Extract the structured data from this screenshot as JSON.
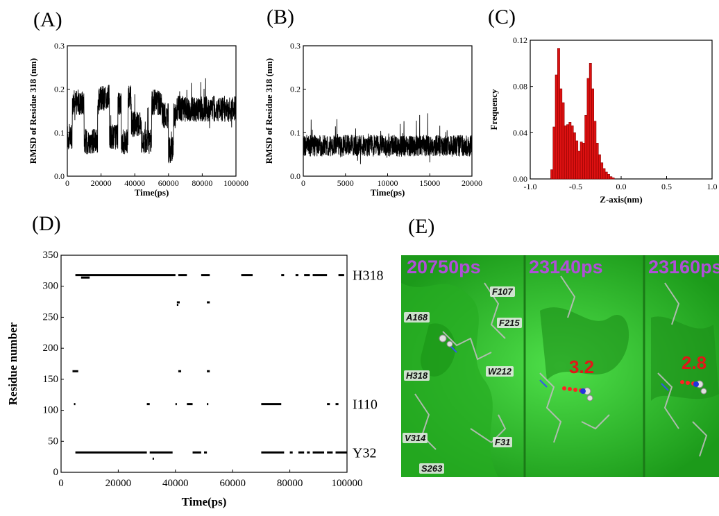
{
  "panels": {
    "A": "(A)",
    "B": "(B)",
    "C": "(C)",
    "D": "(D)",
    "E": "(E)"
  },
  "chart_data": [
    {
      "id": "A",
      "type": "line",
      "xlabel": "Time(ps)",
      "ylabel": "RMSD of Residue 318 (nm)",
      "xlim": [
        0,
        100000
      ],
      "ylim": [
        0.0,
        0.3
      ],
      "xticks": [
        "0",
        "20000",
        "40000",
        "60000",
        "80000",
        "100000"
      ],
      "yticks": [
        "0.0",
        "0.1",
        "0.2",
        "0.3"
      ],
      "segments": [
        [
          0,
          3000,
          0.09
        ],
        [
          3000,
          10000,
          0.17
        ],
        [
          10000,
          18000,
          0.08
        ],
        [
          18000,
          25000,
          0.18
        ],
        [
          25000,
          30000,
          0.09
        ],
        [
          30000,
          32000,
          0.17
        ],
        [
          32000,
          36000,
          0.08
        ],
        [
          36000,
          38000,
          0.18
        ],
        [
          38000,
          44000,
          0.12
        ],
        [
          44000,
          50000,
          0.08
        ],
        [
          50000,
          56000,
          0.17
        ],
        [
          56000,
          60000,
          0.14
        ],
        [
          60000,
          63000,
          0.06
        ],
        [
          63000,
          65000,
          0.14
        ],
        [
          65000,
          100000,
          0.155
        ]
      ],
      "noise": 0.03,
      "color": "#000000"
    },
    {
      "id": "B",
      "type": "line",
      "xlabel": "Time(ps)",
      "ylabel": "RMSD of Residue 318 (nm)",
      "xlim": [
        0,
        20000
      ],
      "ylim": [
        0.0,
        0.3
      ],
      "xticks": [
        "0",
        "5000",
        "10000",
        "15000",
        "20000"
      ],
      "yticks": [
        "0.0",
        "0.1",
        "0.2",
        "0.3"
      ],
      "segments": [
        [
          0,
          20000,
          0.07
        ]
      ],
      "noise": 0.025,
      "color": "#000000"
    },
    {
      "id": "C",
      "type": "bar",
      "xlabel": "Z-axis(nm)",
      "ylabel": "Frequency",
      "xlim": [
        -1.0,
        1.0
      ],
      "ylim": [
        0.0,
        0.12
      ],
      "xticks": [
        "-1.0",
        "-0.5",
        "0.0",
        "0.5",
        "1.0"
      ],
      "yticks": [
        "0.00",
        "0.04",
        "0.08",
        "0.12"
      ],
      "bin_width": 0.025,
      "bin_start": -0.775,
      "values": [
        0.008,
        0.045,
        0.09,
        0.113,
        0.078,
        0.066,
        0.046,
        0.047,
        0.049,
        0.046,
        0.04,
        0.033,
        0.024,
        0.032,
        0.031,
        0.055,
        0.087,
        0.1,
        0.078,
        0.05,
        0.031,
        0.021,
        0.014,
        0.009,
        0.006,
        0.004,
        0.002,
        0.001
      ],
      "color": "#dd1111"
    },
    {
      "id": "D",
      "type": "scatter",
      "xlabel": "Time(ps)",
      "ylabel": "Residue number",
      "xlim": [
        0,
        100000
      ],
      "ylim": [
        0,
        350
      ],
      "xticks": [
        "0",
        "20000",
        "40000",
        "60000",
        "80000",
        "100000"
      ],
      "yticks": [
        "0",
        "50",
        "100",
        "150",
        "200",
        "250",
        "300",
        "350"
      ],
      "right_labels": [
        {
          "y": 318,
          "text": "H318"
        },
        {
          "y": 110,
          "text": "I110"
        },
        {
          "y": 32,
          "text": "Y32"
        }
      ],
      "bands": [
        {
          "y": 318,
          "runs": [
            [
              5000,
              40000
            ],
            [
              41000,
              44000
            ],
            [
              49000,
              52000
            ],
            [
              63000,
              67000
            ],
            [
              77000,
              78000
            ],
            [
              82000,
              83000
            ],
            [
              85000,
              87000
            ],
            [
              88000,
              93000
            ],
            [
              97000,
              99000
            ]
          ]
        },
        {
          "y": 314,
          "runs": [
            [
              7000,
              10000
            ]
          ]
        },
        {
          "y": 274,
          "runs": [
            [
              40500,
              41500
            ],
            [
              51000,
              52000
            ]
          ]
        },
        {
          "y": 270,
          "runs": [
            [
              40500,
              41000
            ]
          ]
        },
        {
          "y": 163,
          "runs": [
            [
              4000,
              6000
            ],
            [
              41000,
              42000
            ],
            [
              51000,
              52000
            ]
          ]
        },
        {
          "y": 110,
          "runs": [
            [
              4500,
              5000
            ],
            [
              30000,
              31000
            ],
            [
              40000,
              40500
            ],
            [
              44000,
              46000
            ],
            [
              51000,
              51500
            ],
            [
              70000,
              77000
            ],
            [
              93000,
              94000
            ],
            [
              96000,
              97000
            ]
          ]
        },
        {
          "y": 32,
          "runs": [
            [
              5000,
              30000
            ],
            [
              31000,
              39000
            ],
            [
              46000,
              49000
            ],
            [
              50000,
              51000
            ],
            [
              70000,
              78000
            ],
            [
              80000,
              81000
            ],
            [
              83000,
              85000
            ],
            [
              86000,
              87000
            ],
            [
              88000,
              92000
            ],
            [
              93000,
              95000
            ],
            [
              96000,
              100000
            ]
          ]
        },
        {
          "y": 22,
          "runs": [
            [
              32000,
              32500
            ]
          ]
        }
      ]
    }
  ],
  "snapshots": {
    "times": [
      "20750ps",
      "23140ps",
      "23160ps"
    ],
    "residues": [
      "F107",
      "A168",
      "F215",
      "W212",
      "H318",
      "V314",
      "F31",
      "S263"
    ],
    "distances": [
      "3.2",
      "2.8"
    ]
  }
}
